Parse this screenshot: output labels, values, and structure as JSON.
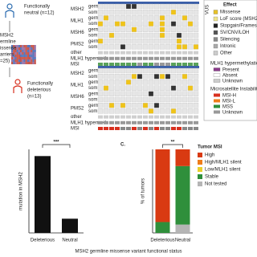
{
  "panel_a": {
    "neutral_lines": [
      "Functionally",
      "neutral (n=12)"
    ],
    "carriers_lines": [
      "MSH2",
      "ermline",
      "issense",
      "arriers",
      "=25)"
    ],
    "deleterious_lines": [
      "Functionally",
      "deleterious",
      "(n=13)"
    ],
    "genes": [
      {
        "gene": "MSH2",
        "sub": [
          "germ",
          "som"
        ]
      },
      {
        "gene": "MLH1",
        "sub": [
          "germ",
          "som"
        ]
      },
      {
        "gene": "MSH6",
        "sub": [
          "germ",
          "som"
        ]
      },
      {
        "gene": "PMS2",
        "sub": [
          "germ",
          "som"
        ]
      }
    ],
    "other": "other",
    "hypermeth": "MLH1 hypermeth",
    "msi": "MSI"
  },
  "legend": {
    "vus": "VUS",
    "effect_title": "Effect",
    "effects": [
      "Missense",
      "LoF score (MSH2 c",
      "Stopgain/Frameshift",
      "SV/CNV/LOH",
      "Silencing",
      "Intronic",
      "Other"
    ],
    "hyper_title": "MLH1 hypermethylation",
    "hyper_items": [
      "Present",
      "Absent",
      "Unknown"
    ],
    "msi_title": "Microsatellite Instability",
    "msi_items": [
      "MSI-H",
      "MSI-L",
      "MSS",
      "Unknown"
    ]
  },
  "x_axis_title": "MSH2 germline missense variant functional status",
  "chart_data": [
    {
      "type": "bar",
      "y_label": "mutation in MSH2",
      "significance": "***",
      "categories": [
        "Deleterious",
        "Neutral"
      ],
      "category_colors": [
        "#d7301f",
        "#2b6cb0"
      ],
      "values": [
        92,
        17
      ],
      "color": "#111111",
      "ylim": [
        0,
        100
      ]
    },
    {
      "type": "stacked_bar",
      "panel_label": "C.",
      "y_label": "% of tumors",
      "significance": "**",
      "legend_title": "Tumor MSI",
      "categories": [
        "Deleterious",
        "Neutral"
      ],
      "category_colors": [
        "#d7301f",
        "#2b6cb0"
      ],
      "ylim": [
        0,
        100
      ],
      "series": [
        {
          "name": "High",
          "color": "#d93a12",
          "values": [
            87,
            20
          ]
        },
        {
          "name": "High/MLH1 silent",
          "color": "#ef7d1a",
          "values": [
            0,
            0
          ]
        },
        {
          "name": "Low/MLH1 silent",
          "color": "#e9cf2a",
          "values": [
            0,
            0
          ]
        },
        {
          "name": "Stable",
          "color": "#2f8f3b",
          "values": [
            13,
            70
          ]
        },
        {
          "name": "Not tested",
          "color": "#b5b5b5",
          "values": [
            0,
            10
          ]
        }
      ]
    }
  ]
}
